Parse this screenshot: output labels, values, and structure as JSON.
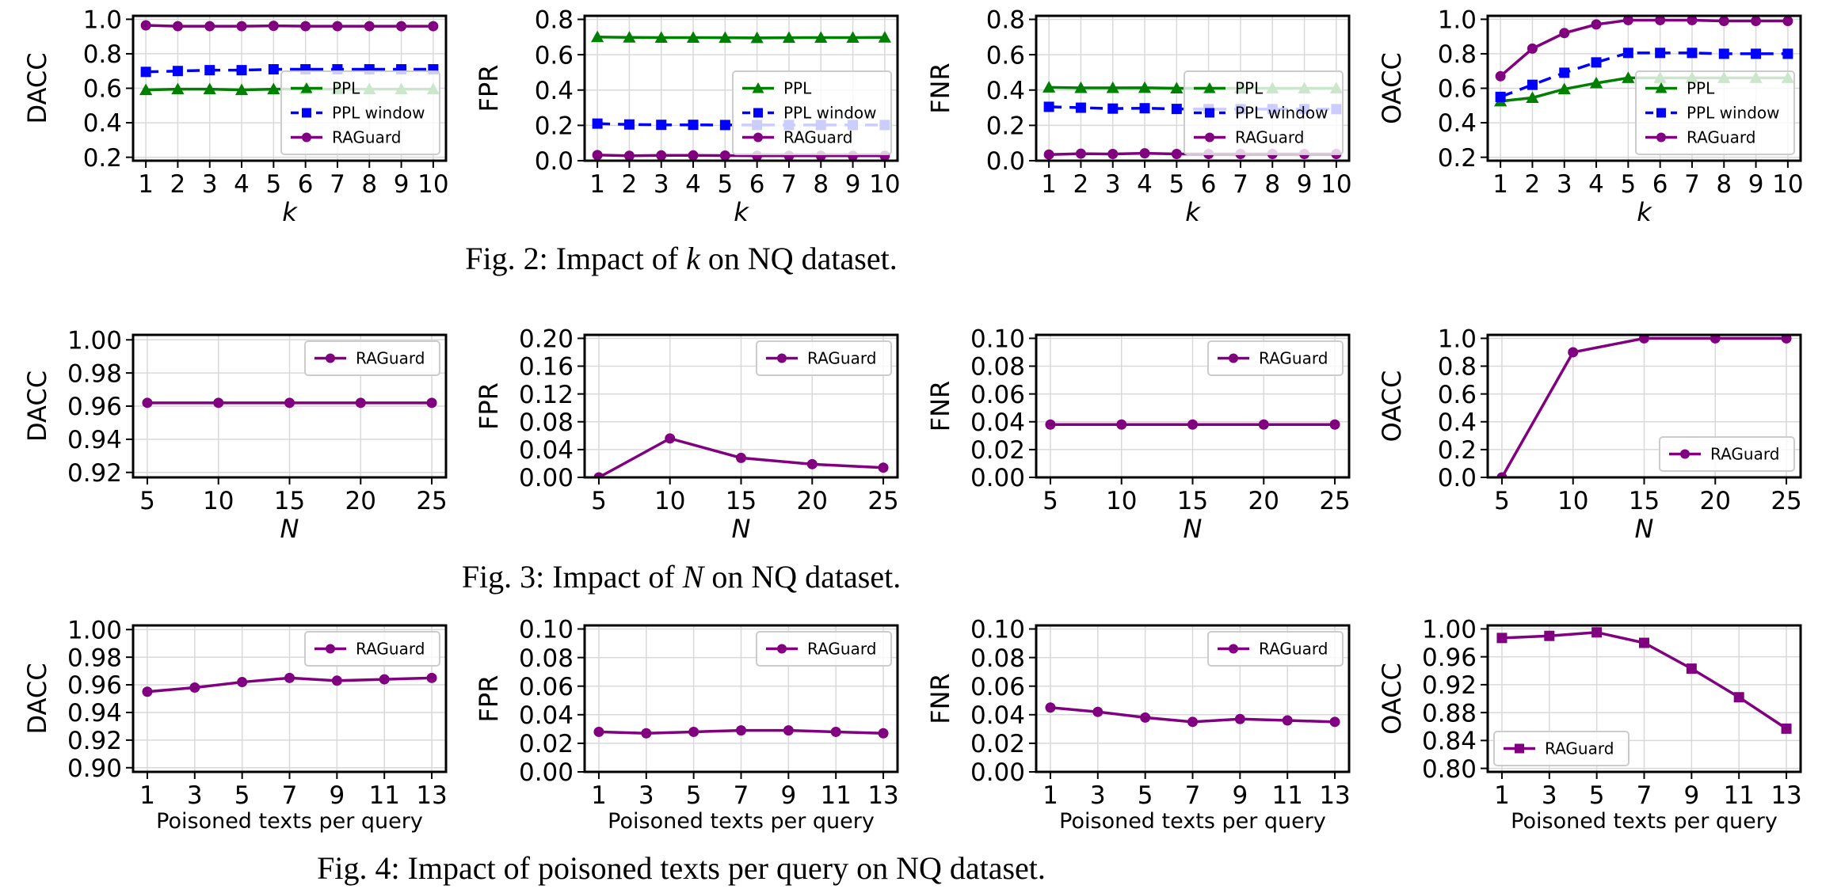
{
  "colors": {
    "ppl": "#008000",
    "ppl_window": "#0000ff",
    "raguard": "#800080",
    "grid": "#d9d9d9",
    "axis": "#000000",
    "legend_border": "#cccccc"
  },
  "captions": [
    {
      "prefix": "Fig. 2: Impact of ",
      "var": "k",
      "suffix": " on NQ dataset."
    },
    {
      "prefix": "Fig. 3: Impact of ",
      "var": "N",
      "suffix": " on NQ dataset."
    },
    {
      "prefix": "Fig. 4: Impact of poisoned texts per query on NQ dataset.",
      "var": "",
      "suffix": ""
    }
  ],
  "chart_data": [
    {
      "type": "line",
      "row": 0,
      "col": 0,
      "ylabel": "DACC",
      "xlabel": "k",
      "xlabel_italic": true,
      "x": [
        1,
        2,
        3,
        4,
        5,
        6,
        7,
        8,
        9,
        10
      ],
      "xticks": [
        "1",
        "2",
        "3",
        "4",
        "5",
        "6",
        "7",
        "8",
        "9",
        "10"
      ],
      "xlim": [
        0.6,
        10.4
      ],
      "ylim": [
        0.18,
        1.02
      ],
      "yticks": [
        "0.2",
        "0.4",
        "0.6",
        "0.8",
        "1.0"
      ],
      "legend": "lower-right",
      "series": [
        {
          "name": "PPL",
          "style": "ppl",
          "values": [
            0.59,
            0.595,
            0.595,
            0.59,
            0.595,
            0.595,
            0.595,
            0.595,
            0.595,
            0.595
          ]
        },
        {
          "name": "PPL window",
          "style": "ppl_window",
          "values": [
            0.695,
            0.7,
            0.705,
            0.705,
            0.71,
            0.71,
            0.71,
            0.71,
            0.71,
            0.71
          ]
        },
        {
          "name": "RAGuard",
          "style": "raguard",
          "values": [
            0.965,
            0.96,
            0.96,
            0.96,
            0.962,
            0.96,
            0.96,
            0.96,
            0.96,
            0.96
          ]
        }
      ]
    },
    {
      "type": "line",
      "row": 0,
      "col": 1,
      "ylabel": "FPR",
      "xlabel": "k",
      "xlabel_italic": true,
      "x": [
        1,
        2,
        3,
        4,
        5,
        6,
        7,
        8,
        9,
        10
      ],
      "xticks": [
        "1",
        "2",
        "3",
        "4",
        "5",
        "6",
        "7",
        "8",
        "9",
        "10"
      ],
      "xlim": [
        0.6,
        10.4
      ],
      "ylim": [
        0,
        0.82
      ],
      "yticks": [
        "0.0",
        "0.2",
        "0.4",
        "0.6",
        "0.8"
      ],
      "legend": "lower-right",
      "series": [
        {
          "name": "PPL",
          "style": "ppl",
          "values": [
            0.7,
            0.698,
            0.697,
            0.697,
            0.696,
            0.695,
            0.696,
            0.697,
            0.697,
            0.698
          ]
        },
        {
          "name": "PPL window",
          "style": "ppl_window",
          "values": [
            0.21,
            0.205,
            0.203,
            0.203,
            0.202,
            0.202,
            0.202,
            0.202,
            0.202,
            0.202
          ]
        },
        {
          "name": "RAGuard",
          "style": "raguard",
          "values": [
            0.032,
            0.028,
            0.03,
            0.03,
            0.029,
            0.028,
            0.028,
            0.028,
            0.028,
            0.028
          ]
        }
      ]
    },
    {
      "type": "line",
      "row": 0,
      "col": 2,
      "ylabel": "FNR",
      "xlabel": "k",
      "xlabel_italic": true,
      "x": [
        1,
        2,
        3,
        4,
        5,
        6,
        7,
        8,
        9,
        10
      ],
      "xticks": [
        "1",
        "2",
        "3",
        "4",
        "5",
        "6",
        "7",
        "8",
        "9",
        "10"
      ],
      "xlim": [
        0.6,
        10.4
      ],
      "ylim": [
        0,
        0.82
      ],
      "yticks": [
        "0.0",
        "0.2",
        "0.4",
        "0.6",
        "0.8"
      ],
      "legend": "lower-right",
      "series": [
        {
          "name": "PPL",
          "style": "ppl",
          "values": [
            0.415,
            0.412,
            0.412,
            0.413,
            0.41,
            0.41,
            0.41,
            0.41,
            0.41,
            0.41
          ]
        },
        {
          "name": "PPL window",
          "style": "ppl_window",
          "values": [
            0.305,
            0.3,
            0.295,
            0.297,
            0.293,
            0.292,
            0.292,
            0.292,
            0.292,
            0.292
          ]
        },
        {
          "name": "RAGuard",
          "style": "raguard",
          "values": [
            0.035,
            0.04,
            0.038,
            0.042,
            0.038,
            0.038,
            0.038,
            0.038,
            0.038,
            0.038
          ]
        }
      ]
    },
    {
      "type": "line",
      "row": 0,
      "col": 3,
      "ylabel": "OACC",
      "xlabel": "k",
      "xlabel_italic": true,
      "x": [
        1,
        2,
        3,
        4,
        5,
        6,
        7,
        8,
        9,
        10
      ],
      "xticks": [
        "1",
        "2",
        "3",
        "4",
        "5",
        "6",
        "7",
        "8",
        "9",
        "10"
      ],
      "xlim": [
        0.6,
        10.4
      ],
      "ylim": [
        0.18,
        1.02
      ],
      "yticks": [
        "0.2",
        "0.4",
        "0.6",
        "0.8",
        "1.0"
      ],
      "legend": "lower-right",
      "series": [
        {
          "name": "PPL",
          "style": "ppl",
          "values": [
            0.525,
            0.545,
            0.595,
            0.63,
            0.66,
            0.66,
            0.66,
            0.66,
            0.66,
            0.66
          ]
        },
        {
          "name": "PPL window",
          "style": "ppl_window",
          "values": [
            0.55,
            0.62,
            0.69,
            0.75,
            0.805,
            0.805,
            0.805,
            0.8,
            0.8,
            0.8
          ]
        },
        {
          "name": "RAGuard",
          "style": "raguard",
          "values": [
            0.67,
            0.83,
            0.92,
            0.97,
            0.995,
            0.995,
            0.995,
            0.99,
            0.99,
            0.99
          ]
        }
      ]
    },
    {
      "type": "line",
      "row": 1,
      "col": 0,
      "ylabel": "DACC",
      "xlabel": "N",
      "xlabel_italic": true,
      "x": [
        5,
        10,
        15,
        20,
        25
      ],
      "xticks": [
        "5",
        "10",
        "15",
        "20",
        "25"
      ],
      "xlim": [
        4,
        26
      ],
      "ylim": [
        0.917,
        1.003
      ],
      "yticks": [
        "0.92",
        "0.94",
        "0.96",
        "0.98",
        "1.00"
      ],
      "legend": "top-right",
      "series": [
        {
          "name": "RAGuard",
          "style": "raguard",
          "values": [
            0.962,
            0.962,
            0.962,
            0.962,
            0.962
          ]
        }
      ]
    },
    {
      "type": "line",
      "row": 1,
      "col": 1,
      "ylabel": "FPR",
      "xlabel": "N",
      "xlabel_italic": true,
      "x": [
        5,
        10,
        15,
        20,
        25
      ],
      "xticks": [
        "5",
        "10",
        "15",
        "20",
        "25"
      ],
      "xlim": [
        4,
        26
      ],
      "ylim": [
        0,
        0.205
      ],
      "yticks": [
        "0.00",
        "0.04",
        "0.08",
        "0.12",
        "0.16",
        "0.20"
      ],
      "legend": "top-right",
      "series": [
        {
          "name": "RAGuard",
          "style": "raguard",
          "values": [
            0.0,
            0.056,
            0.028,
            0.019,
            0.014
          ]
        }
      ]
    },
    {
      "type": "line",
      "row": 1,
      "col": 2,
      "ylabel": "FNR",
      "xlabel": "N",
      "xlabel_italic": true,
      "x": [
        5,
        10,
        15,
        20,
        25
      ],
      "xticks": [
        "5",
        "10",
        "15",
        "20",
        "25"
      ],
      "xlim": [
        4,
        26
      ],
      "ylim": [
        0,
        0.1025
      ],
      "yticks": [
        "0.00",
        "0.02",
        "0.04",
        "0.06",
        "0.08",
        "0.10"
      ],
      "legend": "top-right",
      "series": [
        {
          "name": "RAGuard",
          "style": "raguard",
          "values": [
            0.038,
            0.038,
            0.038,
            0.038,
            0.038
          ]
        }
      ]
    },
    {
      "type": "line",
      "row": 1,
      "col": 3,
      "ylabel": "OACC",
      "xlabel": "N",
      "xlabel_italic": true,
      "x": [
        5,
        10,
        15,
        20,
        25
      ],
      "xticks": [
        "5",
        "10",
        "15",
        "20",
        "25"
      ],
      "xlim": [
        4,
        26
      ],
      "ylim": [
        0,
        1.025
      ],
      "yticks": [
        "0.0",
        "0.2",
        "0.4",
        "0.6",
        "0.8",
        "1.0"
      ],
      "legend": "lower-right",
      "series": [
        {
          "name": "RAGuard",
          "style": "raguard",
          "values": [
            0.0,
            0.9,
            1.0,
            1.0,
            1.0
          ]
        }
      ]
    },
    {
      "type": "line",
      "row": 2,
      "col": 0,
      "ylabel": "DACC",
      "xlabel": "Poisoned texts per query",
      "xlabel_italic": false,
      "x": [
        1,
        3,
        5,
        7,
        9,
        11,
        13
      ],
      "xticks": [
        "1",
        "3",
        "5",
        "7",
        "9",
        "11",
        "13"
      ],
      "xlim": [
        0.4,
        13.6
      ],
      "ylim": [
        0.897,
        1.003
      ],
      "yticks": [
        "0.90",
        "0.92",
        "0.94",
        "0.96",
        "0.98",
        "1.00"
      ],
      "legend": "top-right",
      "series": [
        {
          "name": "RAGuard",
          "style": "raguard",
          "values": [
            0.955,
            0.958,
            0.962,
            0.965,
            0.963,
            0.964,
            0.965
          ]
        }
      ]
    },
    {
      "type": "line",
      "row": 2,
      "col": 1,
      "ylabel": "FPR",
      "xlabel": "Poisoned texts per query",
      "xlabel_italic": false,
      "x": [
        1,
        3,
        5,
        7,
        9,
        11,
        13
      ],
      "xticks": [
        "1",
        "3",
        "5",
        "7",
        "9",
        "11",
        "13"
      ],
      "xlim": [
        0.4,
        13.6
      ],
      "ylim": [
        0,
        0.1025
      ],
      "yticks": [
        "0.00",
        "0.02",
        "0.04",
        "0.06",
        "0.08",
        "0.10"
      ],
      "legend": "top-right",
      "series": [
        {
          "name": "RAGuard",
          "style": "raguard",
          "values": [
            0.028,
            0.027,
            0.028,
            0.029,
            0.029,
            0.028,
            0.027
          ]
        }
      ]
    },
    {
      "type": "line",
      "row": 2,
      "col": 2,
      "ylabel": "FNR",
      "xlabel": "Poisoned texts per query",
      "xlabel_italic": false,
      "x": [
        1,
        3,
        5,
        7,
        9,
        11,
        13
      ],
      "xticks": [
        "1",
        "3",
        "5",
        "7",
        "9",
        "11",
        "13"
      ],
      "xlim": [
        0.4,
        13.6
      ],
      "ylim": [
        0,
        0.1025
      ],
      "yticks": [
        "0.00",
        "0.02",
        "0.04",
        "0.06",
        "0.08",
        "0.10"
      ],
      "legend": "top-right",
      "series": [
        {
          "name": "RAGuard",
          "style": "raguard",
          "values": [
            0.045,
            0.042,
            0.038,
            0.035,
            0.037,
            0.036,
            0.035
          ]
        }
      ]
    },
    {
      "type": "line",
      "row": 2,
      "col": 3,
      "ylabel": "OACC",
      "xlabel": "Poisoned texts per query",
      "xlabel_italic": false,
      "x": [
        1,
        3,
        5,
        7,
        9,
        11,
        13
      ],
      "xticks": [
        "1",
        "3",
        "5",
        "7",
        "9",
        "11",
        "13"
      ],
      "xlim": [
        0.4,
        13.6
      ],
      "ylim": [
        0.795,
        1.005
      ],
      "yticks": [
        "0.80",
        "0.84",
        "0.88",
        "0.92",
        "0.96",
        "1.00"
      ],
      "legend": "lower-left",
      "series": [
        {
          "name": "RAGuard",
          "style": "raguard_square",
          "values": [
            0.987,
            0.99,
            0.995,
            0.98,
            0.943,
            0.902,
            0.857
          ]
        }
      ]
    }
  ]
}
